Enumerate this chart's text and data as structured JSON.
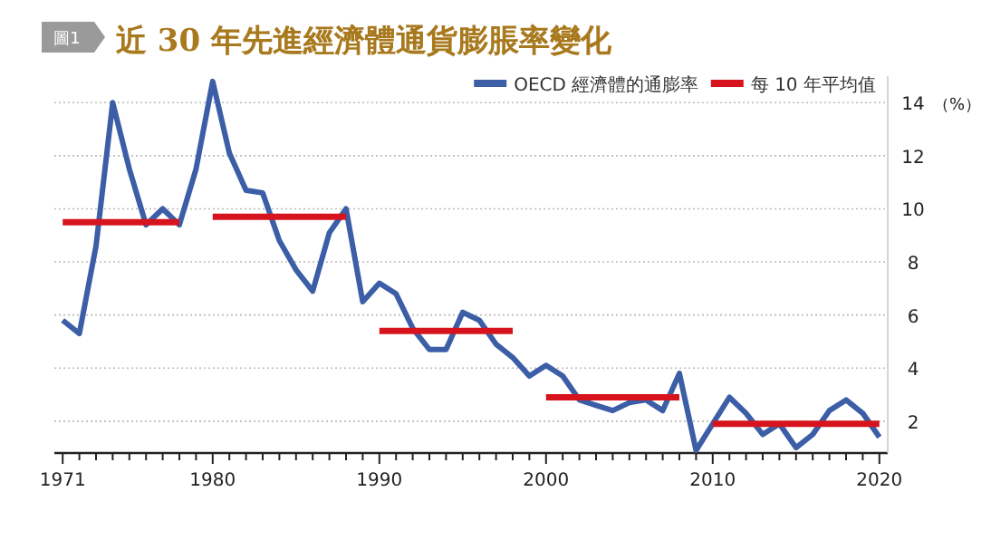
{
  "chart_data": {
    "type": "line",
    "title": "近 30 年先進經濟體通貨膨脹率變化",
    "ylabel": "（%）",
    "annotations": [
      "圖1"
    ],
    "x": [
      1971,
      1972,
      1973,
      1974,
      1975,
      1976,
      1977,
      1978,
      1979,
      1980,
      1981,
      1982,
      1983,
      1984,
      1985,
      1986,
      1987,
      1988,
      1989,
      1990,
      1991,
      1992,
      1993,
      1994,
      1995,
      1996,
      1997,
      1998,
      1999,
      2000,
      2001,
      2002,
      2003,
      2004,
      2005,
      2006,
      2007,
      2008,
      2009,
      2010,
      2011,
      2012,
      2013,
      2014,
      2015,
      2016,
      2017,
      2018,
      2019,
      2020
    ],
    "series": [
      {
        "name": "OECD 經濟體的通膨率",
        "color": "#3b5ea6",
        "values": [
          5.8,
          5.3,
          8.6,
          14.0,
          11.5,
          9.4,
          10.0,
          9.4,
          11.5,
          14.8,
          12.1,
          10.7,
          10.6,
          8.8,
          7.7,
          6.9,
          9.1,
          10.0,
          6.5,
          7.2,
          6.8,
          5.5,
          4.7,
          4.7,
          6.1,
          5.8,
          4.9,
          4.4,
          3.7,
          4.1,
          3.7,
          2.8,
          2.6,
          2.4,
          2.7,
          2.8,
          2.4,
          3.8,
          0.9,
          1.9,
          2.9,
          2.3,
          1.5,
          1.9,
          1.0,
          1.5,
          2.4,
          2.8,
          2.3,
          1.4
        ]
      },
      {
        "name": "每 10 年平均值",
        "color": "#d7141e",
        "x": [
          1971,
          1978,
          1979,
          1980,
          1988,
          1989,
          1990,
          1998,
          1999,
          2000,
          2008,
          2009,
          2010,
          2020
        ],
        "values": [
          9.5,
          9.5,
          null,
          9.7,
          9.7,
          null,
          5.4,
          5.4,
          null,
          2.9,
          2.9,
          null,
          1.9,
          1.9
        ]
      }
    ],
    "xlim": [
      1970.5,
      2020.5
    ],
    "xticks": [
      1971,
      {
        "value": 1972,
        "label": null
      },
      {
        "value": 1973,
        "label": null
      },
      {
        "value": 1974,
        "label": null
      },
      {
        "value": 1975,
        "label": null
      },
      {
        "value": 1976,
        "label": null
      },
      {
        "value": 1977,
        "label": null
      },
      {
        "value": 1978,
        "label": null
      },
      {
        "value": 1979,
        "label": null
      },
      1980,
      {
        "value": 1981,
        "label": null
      },
      {
        "value": 1982,
        "label": null
      },
      {
        "value": 1983,
        "label": null
      },
      {
        "value": 1984,
        "label": null
      },
      {
        "value": 1985,
        "label": null
      },
      {
        "value": 1986,
        "label": null
      },
      {
        "value": 1987,
        "label": null
      },
      {
        "value": 1988,
        "label": null
      },
      {
        "value": 1989,
        "label": null
      },
      1990,
      {
        "value": 1991,
        "label": null
      },
      {
        "value": 1992,
        "label": null
      },
      {
        "value": 1993,
        "label": null
      },
      {
        "value": 1994,
        "label": null
      },
      {
        "value": 1995,
        "label": null
      },
      {
        "value": 1996,
        "label": null
      },
      {
        "value": 1997,
        "label": null
      },
      {
        "value": 1998,
        "label": null
      },
      {
        "value": 1999,
        "label": null
      },
      2000,
      {
        "value": 2001,
        "label": null
      },
      {
        "value": 2002,
        "label": null
      },
      {
        "value": 2003,
        "label": null
      },
      {
        "value": 2004,
        "label": null
      },
      {
        "value": 2005,
        "label": null
      },
      {
        "value": 2006,
        "label": null
      },
      {
        "value": 2007,
        "label": null
      },
      {
        "value": 2008,
        "label": null
      },
      {
        "value": 2009,
        "label": null
      },
      2010,
      {
        "value": 2011,
        "label": null
      },
      {
        "value": 2012,
        "label": null
      },
      {
        "value": 2013,
        "label": null
      },
      {
        "value": 2014,
        "label": null
      },
      {
        "value": 2015,
        "label": null
      },
      {
        "value": 2016,
        "label": null
      },
      {
        "value": 2017,
        "label": null
      },
      {
        "value": 2018,
        "label": null
      },
      {
        "value": 2019,
        "label": null
      },
      2020
    ],
    "ylim": [
      0.8,
      15
    ],
    "yticks": [
      2,
      4,
      6,
      8,
      10,
      12,
      14
    ],
    "grid": "y",
    "legend": "top right",
    "marker": "none",
    "line_style": "solid"
  }
}
